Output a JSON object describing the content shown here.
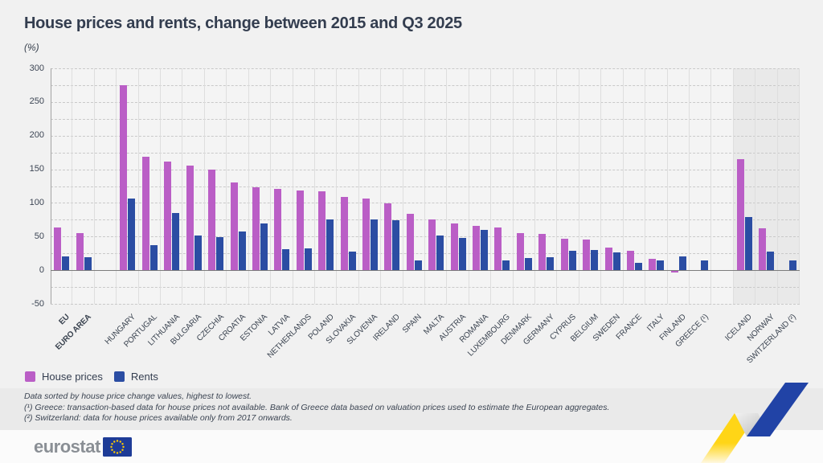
{
  "header": {
    "title": "House prices and rents, change between 2015 and Q3 2025",
    "unit_label": "(%)"
  },
  "legend": {
    "house_prices_label": "House prices",
    "rents_label": "Rents"
  },
  "footnotes": {
    "line1": "Data sorted by house price change values, highest to lowest.",
    "line2": "(¹) Greece: transaction-based data for house prices not available. Bank of Greece data based on valuation prices used to estimate the European aggregates.",
    "line3": "(²) Switzerland: data for house prices available only from 2017 onwards."
  },
  "footer": {
    "logo_text": "eurostat"
  },
  "colors": {
    "house_prices": "#ba5ec6",
    "rents": "#2b4da3",
    "efta_band": "#e9e9e9",
    "flag_blue": "#1e3c97",
    "flag_star_gold": "#ffcc00",
    "ribbon_yellow": "#ffd517",
    "ribbon_blue": "#2143a6"
  },
  "chart_data": {
    "type": "bar",
    "title": "House prices and rents, change between 2015 and Q3 2025",
    "ylabel": "(%)",
    "ylim": [
      -50,
      300
    ],
    "ytick_labeled_step": 50,
    "ygrid_step": 25,
    "grid": "dashed horizontal every 25, vertical column separators",
    "legend_position": "bottom-left",
    "sort_note": "sorted by house price change, highest to lowest",
    "series": [
      {
        "name": "House prices",
        "key": "house_prices",
        "color": "#ba5ec6"
      },
      {
        "name": "Rents",
        "key": "rents",
        "color": "#2b4da3"
      }
    ],
    "groups": [
      {
        "label": "EU",
        "bold": true,
        "house_prices": 64,
        "rents": 21
      },
      {
        "label": "EURO AREA",
        "bold": true,
        "house_prices": 55,
        "rents": 19
      },
      {
        "spacer": true
      },
      {
        "label": "HUNGARY",
        "house_prices": 275,
        "rents": 107
      },
      {
        "label": "PORTUGAL",
        "house_prices": 169,
        "rents": 37
      },
      {
        "label": "LITHUANIA",
        "house_prices": 162,
        "rents": 85
      },
      {
        "label": "BULGARIA",
        "house_prices": 156,
        "rents": 51
      },
      {
        "label": "CZECHIA",
        "house_prices": 149,
        "rents": 49
      },
      {
        "label": "CROATIA",
        "house_prices": 130,
        "rents": 57
      },
      {
        "label": "ESTONIA",
        "house_prices": 123,
        "rents": 69
      },
      {
        "label": "LATVIA",
        "house_prices": 121,
        "rents": 31
      },
      {
        "label": "NETHERLANDS",
        "house_prices": 118,
        "rents": 32
      },
      {
        "label": "POLAND",
        "house_prices": 117,
        "rents": 75
      },
      {
        "label": "SLOVAKIA",
        "house_prices": 109,
        "rents": 28
      },
      {
        "label": "SLOVENIA",
        "house_prices": 107,
        "rents": 75
      },
      {
        "label": "IRELAND",
        "house_prices": 99,
        "rents": 74
      },
      {
        "label": "SPAIN",
        "house_prices": 84,
        "rents": 14
      },
      {
        "label": "MALTA",
        "house_prices": 76,
        "rents": 52
      },
      {
        "label": "AUSTRIA",
        "house_prices": 70,
        "rents": 48
      },
      {
        "label": "ROMANIA",
        "house_prices": 66,
        "rents": 60
      },
      {
        "label": "LUXEMBOURG",
        "house_prices": 64,
        "rents": 15
      },
      {
        "label": "DENMARK",
        "house_prices": 55,
        "rents": 18
      },
      {
        "label": "GERMANY",
        "house_prices": 54,
        "rents": 19
      },
      {
        "label": "CYPRUS",
        "house_prices": 47,
        "rents": 29
      },
      {
        "label": "BELGIUM",
        "house_prices": 46,
        "rents": 30
      },
      {
        "label": "SWEDEN",
        "house_prices": 34,
        "rents": 27
      },
      {
        "label": "FRANCE",
        "house_prices": 29,
        "rents": 11
      },
      {
        "label": "ITALY",
        "house_prices": 17,
        "rents": 14
      },
      {
        "label": "FINLAND",
        "house_prices": -2,
        "rents": 20
      },
      {
        "label": "GREECE (¹)",
        "house_prices": null,
        "rents": 14
      },
      {
        "spacer": true
      },
      {
        "label": "ICELAND",
        "shaded": true,
        "house_prices": 165,
        "rents": 79
      },
      {
        "label": "NORWAY",
        "shaded": true,
        "house_prices": 62,
        "rents": 28
      },
      {
        "label": "SWITZERLAND (²)",
        "shaded": true,
        "house_prices": null,
        "rents": 15
      }
    ]
  }
}
